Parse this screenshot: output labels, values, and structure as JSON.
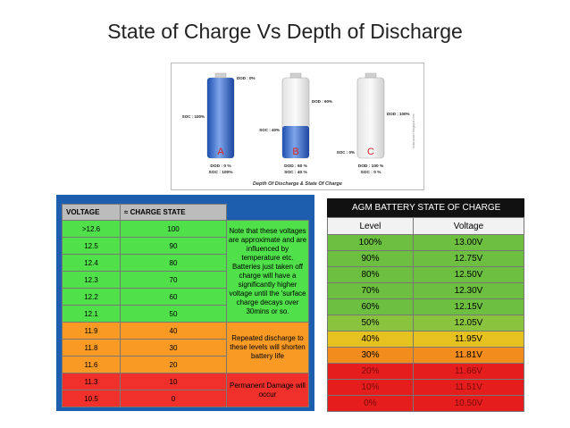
{
  "title": "State of Charge Vs Depth of Discharge",
  "diagram": {
    "caption": "Depth Of Discharge & State Of Charge",
    "batteries": [
      {
        "letter": "A",
        "top_label": "DOD : 0%",
        "side_label": "SOC : 100%",
        "bottom_dod": "DOD : 0 %",
        "bottom_soc": "SOC : 100%",
        "fill": 1.0
      },
      {
        "letter": "B",
        "top_label": "DOD : 60%",
        "side_label": "SOC : 40%",
        "bottom_dod": "DOD : 60 %",
        "bottom_soc": "SOC : 40 %",
        "fill": 0.4
      },
      {
        "letter": "C",
        "top_label": "DOD : 100%",
        "side_label": "SOC : 0%",
        "bottom_dod": "DOD : 100 %",
        "bottom_soc": "SOC : 0 %",
        "fill": 0.0
      }
    ],
    "watermark": "solarpower.blogspot.com",
    "colors": {
      "battery_fill": "#2d63c8",
      "letter": "#e0211e"
    }
  },
  "left_table": {
    "headers": [
      "VOLTAGE",
      "≈ CHARGE STATE",
      ""
    ],
    "rows": [
      {
        "voltage": ">12.6",
        "charge": "100",
        "zone": "g"
      },
      {
        "voltage": "12.5",
        "charge": "90",
        "zone": "g"
      },
      {
        "voltage": "12.4",
        "charge": "80",
        "zone": "g"
      },
      {
        "voltage": "12.3",
        "charge": "70",
        "zone": "g"
      },
      {
        "voltage": "12.2",
        "charge": "60",
        "zone": "g"
      },
      {
        "voltage": "12.1",
        "charge": "50",
        "zone": "g"
      },
      {
        "voltage": "11.9",
        "charge": "40",
        "zone": "o"
      },
      {
        "voltage": "11.8",
        "charge": "30",
        "zone": "o"
      },
      {
        "voltage": "11.6",
        "charge": "20",
        "zone": "o"
      },
      {
        "voltage": "11.3",
        "charge": "10",
        "zone": "r"
      },
      {
        "voltage": "10.5",
        "charge": "0",
        "zone": "r"
      }
    ],
    "notes": {
      "green": "Note that these voltages are approximate and are influenced by temperature etc. Batteries just taken off charge will have a significantly higher voltage until the 'surface charge decays over 30mins or so.",
      "orange": "Repeated discharge to these levels will shorten battery life",
      "red": "Permanent Damage will occur"
    },
    "colors": {
      "green": "#4fe04a",
      "orange": "#f99a25",
      "red": "#f0312b",
      "frame": "#1d5fae"
    }
  },
  "right_table": {
    "title": "AGM BATTERY STATE OF CHARGE",
    "headers": [
      "Level",
      "Voltage"
    ],
    "rows": [
      {
        "level": "100%",
        "voltage": "13.00V",
        "band": "c1"
      },
      {
        "level": "90%",
        "voltage": "12.75V",
        "band": "c1"
      },
      {
        "level": "80%",
        "voltage": "12.50V",
        "band": "c1"
      },
      {
        "level": "70%",
        "voltage": "12.30V",
        "band": "c1"
      },
      {
        "level": "60%",
        "voltage": "12.15V",
        "band": "c1"
      },
      {
        "level": "50%",
        "voltage": "12.05V",
        "band": "c2"
      },
      {
        "level": "40%",
        "voltage": "11.95V",
        "band": "c3"
      },
      {
        "level": "30%",
        "voltage": "11.81V",
        "band": "c4"
      },
      {
        "level": "20%",
        "voltage": "11.66V",
        "band": "c5"
      },
      {
        "level": "10%",
        "voltage": "11.51V",
        "band": "c5"
      },
      {
        "level": "0%",
        "voltage": "10.50V",
        "band": "c5"
      }
    ]
  }
}
